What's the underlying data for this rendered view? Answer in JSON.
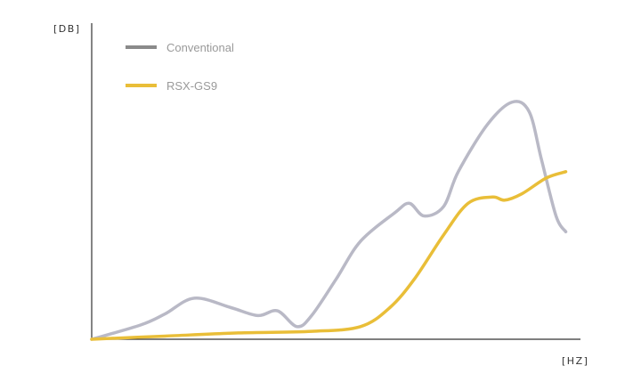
{
  "chart_data": {
    "type": "line",
    "title": "",
    "xlabel": "[HZ]",
    "ylabel": "[DB]",
    "xlim": [
      0,
      100
    ],
    "ylim": [
      0,
      100
    ],
    "grid": false,
    "legend_position": "top-left",
    "series": [
      {
        "name": "Conventional",
        "color": "#b9b9c6",
        "legend_color": "#8a8a8a",
        "x": [
          0,
          10,
          15,
          21,
          28.5,
          34,
          38,
          42,
          45,
          50,
          55,
          62,
          65,
          68,
          72,
          75,
          81,
          86,
          89.5,
          92,
          95,
          97
        ],
        "y": [
          0,
          4.5,
          8,
          13,
          10,
          7.5,
          9,
          4,
          7.5,
          19,
          31,
          40,
          43,
          39,
          42,
          53,
          68,
          75,
          72,
          57,
          39,
          34
        ]
      },
      {
        "name": "RSX-GS9",
        "color": "#e9be38",
        "legend_color": "#e9be38",
        "x": [
          0,
          15,
          30,
          45,
          55,
          61,
          66,
          72,
          77,
          82,
          84.5,
          88,
          93,
          97
        ],
        "y": [
          0,
          1,
          2,
          2.5,
          4,
          10,
          19,
          33,
          43,
          45,
          44,
          46,
          51,
          53
        ]
      }
    ]
  }
}
